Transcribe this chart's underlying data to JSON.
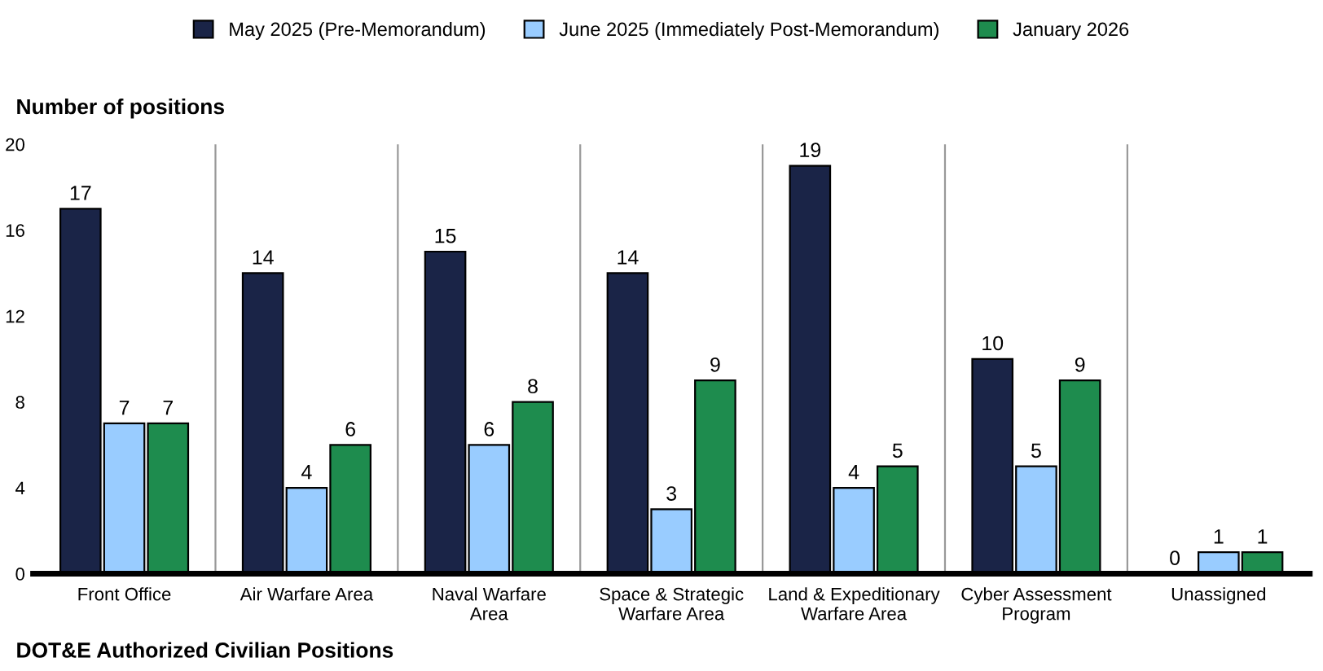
{
  "chart_data": {
    "type": "bar",
    "ylabel": "Number of positions",
    "xlabel": "DOT&E Authorized Civilian Positions",
    "categories": [
      "Front Office",
      "Air Warfare Area",
      "Naval Warfare\nArea",
      "Space & Strategic\nWarfare Area",
      "Land & Expeditionary\nWarfare Area",
      "Cyber Assessment\nProgram",
      "Unassigned"
    ],
    "series": [
      {
        "name": "May 2025 (Pre-Memorandum)",
        "color": "#1a2447",
        "values": [
          17,
          14,
          15,
          14,
          19,
          10,
          0
        ]
      },
      {
        "name": "June 2025 (Immediately Post-Memorandum)",
        "color": "#99ccff",
        "values": [
          7,
          4,
          6,
          3,
          4,
          5,
          1
        ]
      },
      {
        "name": "January 2026",
        "color": "#1e8c4e",
        "values": [
          7,
          6,
          8,
          9,
          5,
          9,
          1
        ]
      }
    ],
    "ylim": [
      0,
      20
    ],
    "yticks": [
      0,
      4,
      8,
      12,
      16,
      20
    ],
    "grid": "x",
    "legend": "top",
    "data_labels": true
  }
}
